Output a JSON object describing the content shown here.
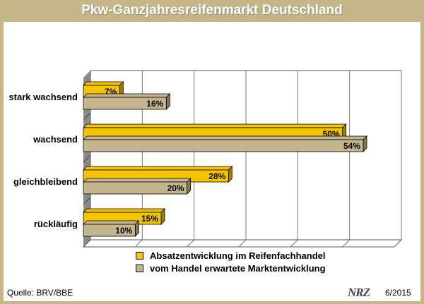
{
  "header": {
    "title": "Pkw-Ganzjahresreifenmarkt Deutschland"
  },
  "footer": {
    "source": "Quelle: BRV/BBE",
    "logo": "NRZ",
    "date": "6/2015"
  },
  "colors": {
    "series1": "#f5c400",
    "series2": "#c3b58e",
    "frame": "#c7b58a"
  },
  "chart_data": {
    "type": "bar",
    "orientation": "horizontal",
    "title": "Pkw-Ganzjahresreifenmarkt Deutschland",
    "categories": [
      "stark wachsend",
      "wachsend",
      "gleichbleibend",
      "rückläufig"
    ],
    "series": [
      {
        "name": "Absatzentwicklung im Reifenfachhandel",
        "values": [
          7,
          50,
          28,
          15
        ],
        "labels": [
          "7%",
          "50%",
          "28%",
          "15%"
        ]
      },
      {
        "name": "vom Handel erwartete Marktentwicklung",
        "values": [
          16,
          54,
          20,
          10
        ],
        "labels": [
          "16%",
          "54%",
          "20%",
          "10%"
        ]
      }
    ],
    "xlim": [
      0,
      60
    ],
    "grid": true,
    "legend": "bottom"
  }
}
